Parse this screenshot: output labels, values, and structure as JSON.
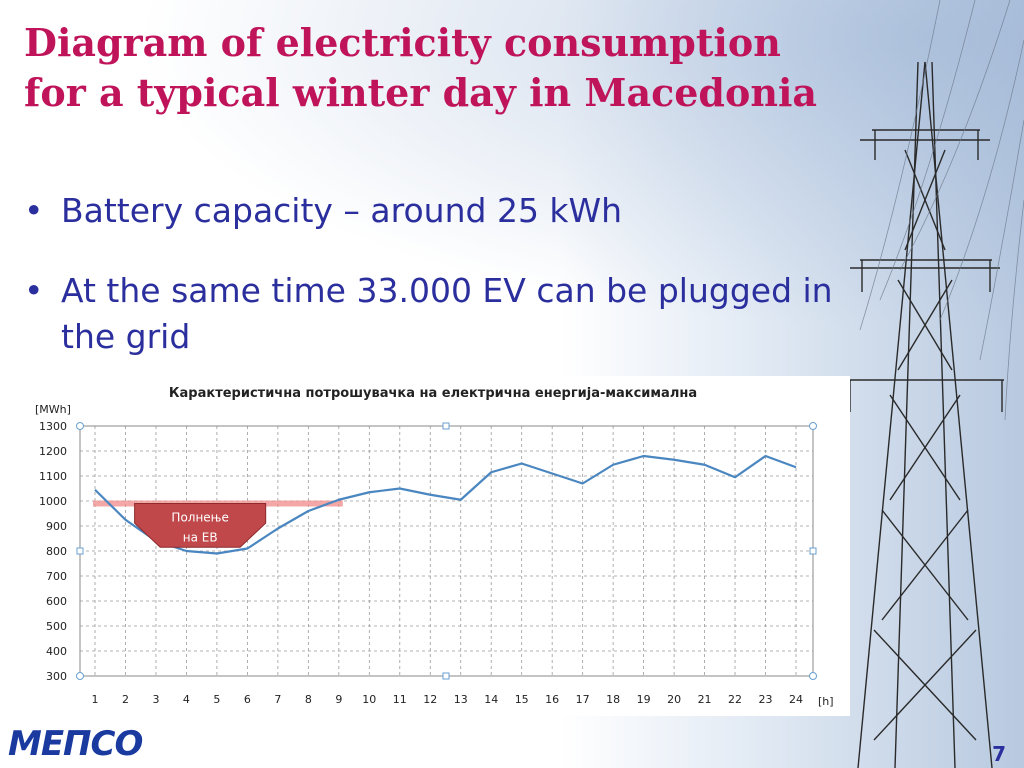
{
  "slide": {
    "title_line1": "Diagram of electricity consumption",
    "title_line2": "for a typical winter day in Macedonia",
    "bullets": [
      "Battery capacity – around 25 kWh",
      "At the same time 33.000 EV can be plugged in the grid"
    ],
    "logo_text": "МЕПСО",
    "page_number": "7"
  },
  "colors": {
    "title": "#c0145a",
    "bullet_text": "#2b2f9e",
    "series_line": "#4a86c0",
    "threshold_line": "#f08a8a",
    "callout_fill": "#c0474a"
  },
  "chart_data": {
    "type": "line",
    "title": "Карактеристична потрошувачка на електрична енергија-максимална",
    "y_unit_label": "[MWh]",
    "x_unit_label": "[h]",
    "x": [
      1,
      2,
      3,
      4,
      5,
      6,
      7,
      8,
      9,
      10,
      11,
      12,
      13,
      14,
      15,
      16,
      17,
      18,
      19,
      20,
      21,
      22,
      23,
      24
    ],
    "series": [
      {
        "values": [
          1045,
          925,
          840,
          800,
          790,
          810,
          890,
          960,
          1005,
          1035,
          1050,
          1025,
          1005,
          1115,
          1150,
          1110,
          1070,
          1145,
          1180,
          1165,
          1145,
          1095,
          1180,
          1135
        ]
      }
    ],
    "ylim": [
      300,
      1300
    ],
    "y_ticks": [
      300,
      400,
      500,
      600,
      700,
      800,
      900,
      1000,
      1100,
      1200,
      1300
    ],
    "grid": true,
    "threshold": {
      "value": 990,
      "x_from": 1,
      "x_to": 9
    },
    "callout": {
      "line1": "Полнење",
      "line2": "на ЕВ"
    }
  }
}
